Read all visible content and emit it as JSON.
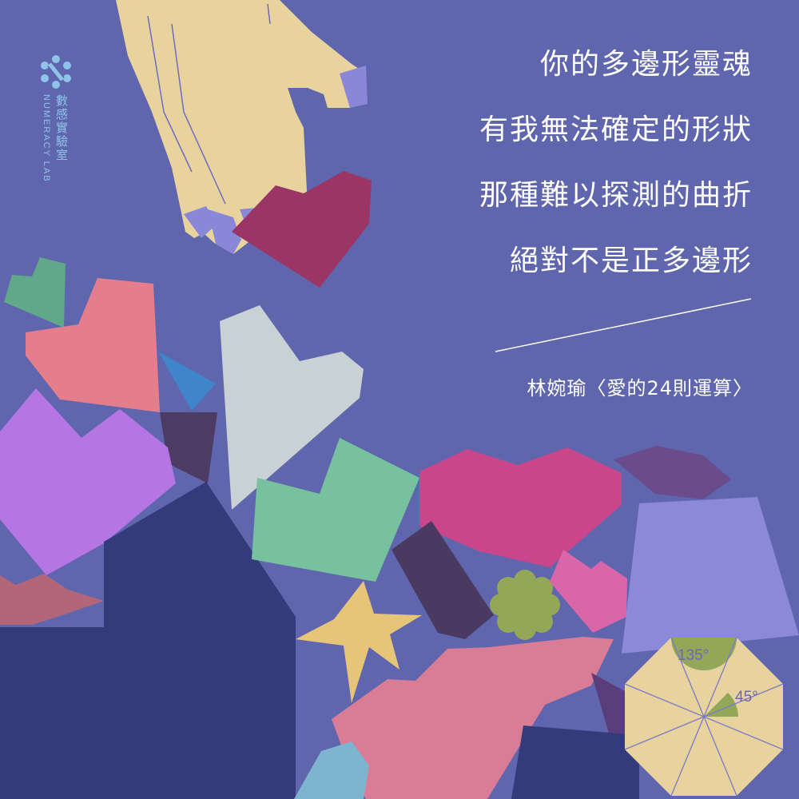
{
  "brand": {
    "name": "數感實驗室",
    "name_en": "NUMERACY LAB",
    "icon": "molecule-logo-icon",
    "color": "#8fc4e8"
  },
  "poem": {
    "lines": [
      "你的多邊形靈魂",
      "有我無法確定的形狀",
      "那種難以探測的曲折",
      "絕對不是正多邊形"
    ],
    "credit": "林婉瑜〈愛的24則運算〉"
  },
  "octagon": {
    "angle_large": "135°",
    "angle_small": "45°"
  },
  "colors": {
    "background": "#5f66ad",
    "text": "#ffffff",
    "hand": "#e8d29e",
    "heart_red": "#9b3565",
    "heart_magenta": "#c9468a"
  }
}
